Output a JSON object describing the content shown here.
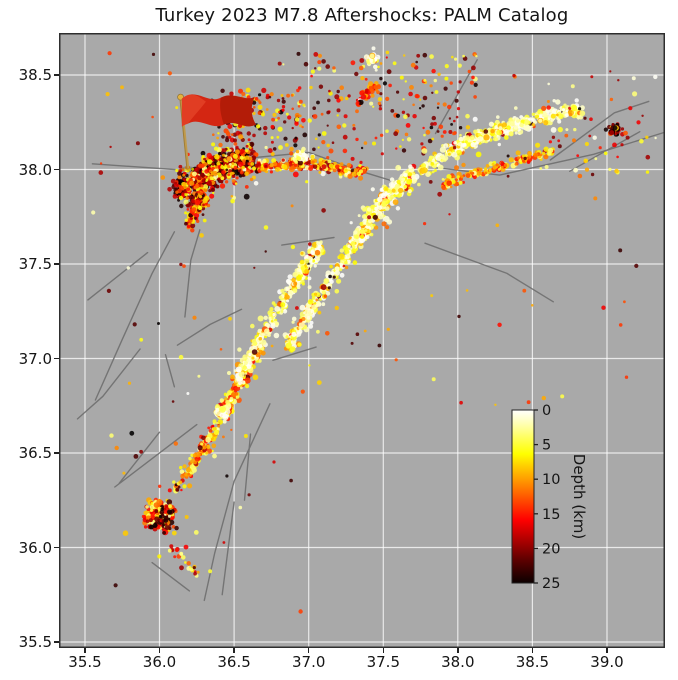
{
  "title": "Turkey 2023 M7.8 Aftershocks: PALM Catalog",
  "colors": {
    "figure_bg": "#ffffff",
    "axes_bg": "#a9a9a9",
    "grid": "rgba(255,255,255,0.75)",
    "fault_line": "#6f6f6f",
    "spine": "#2e2e2e",
    "text": "#151515",
    "flag_red": "#d42612",
    "flag_red_dark": "#a81a06",
    "flag_pole": "#c09a4c"
  },
  "chart_data": {
    "type": "scatter",
    "title": "Turkey 2023 M7.8 Aftershocks: PALM Catalog",
    "xlabel": "",
    "ylabel": "",
    "x_range": [
      35.326,
      39.389
    ],
    "y_range": [
      35.468,
      38.722
    ],
    "xticks": [
      35.5,
      36.0,
      36.5,
      37.0,
      37.5,
      38.0,
      38.5,
      39.0
    ],
    "yticks": [
      35.5,
      36.0,
      36.5,
      37.0,
      37.5,
      38.0,
      38.5
    ],
    "grid": true,
    "marker": "circle",
    "colorbar": {
      "label": "Depth (km)",
      "ticks": [
        0,
        5,
        10,
        15,
        20,
        25
      ],
      "min": 0,
      "max": 25,
      "cmap": "hot_r",
      "orientation": "vertical",
      "position": "inset lower right"
    },
    "epicenter_flag": {
      "lon": 36.19,
      "lat": 38.01
    },
    "clusters": [
      {
        "name": "m75-west-deep",
        "kind": "band",
        "pts": [
          [
            36.12,
            37.88
          ],
          [
            36.38,
            38.0
          ],
          [
            36.62,
            38.05
          ]
        ],
        "width": 0.09,
        "count": 550,
        "depth": [
          10,
          25
        ],
        "bias": "deep",
        "size": [
          1.3,
          3.0
        ]
      },
      {
        "name": "m75-west-mix",
        "kind": "band",
        "pts": [
          [
            36.12,
            37.88
          ],
          [
            36.38,
            38.0
          ],
          [
            36.62,
            38.05
          ]
        ],
        "width": 0.14,
        "count": 240,
        "depth": [
          2,
          20
        ],
        "bias": "uniform",
        "size": [
          1.3,
          2.8
        ]
      },
      {
        "name": "m75-southwest-tail",
        "kind": "band",
        "pts": [
          [
            36.18,
            37.7
          ],
          [
            36.3,
            37.87
          ]
        ],
        "width": 0.05,
        "count": 110,
        "depth": [
          5,
          23
        ],
        "bias": "uniform",
        "size": [
          1.3,
          2.8
        ]
      },
      {
        "name": "north-scatter",
        "kind": "field",
        "rect": [
          36.35,
          38.08,
          36.95,
          38.42
        ],
        "count": 140,
        "depth": [
          4,
          25
        ],
        "bias": "uniform",
        "size": [
          1.2,
          2.6
        ]
      },
      {
        "name": "m75-middle",
        "kind": "band",
        "pts": [
          [
            36.65,
            38.02
          ],
          [
            37.0,
            38.03
          ],
          [
            37.38,
            37.98
          ]
        ],
        "width": 0.05,
        "count": 240,
        "depth": [
          2,
          20
        ],
        "bias": "uniform",
        "size": [
          1.3,
          2.9
        ]
      },
      {
        "name": "m75-middle-shallow",
        "kind": "blob",
        "center": [
          36.95,
          38.07
        ],
        "rx": 0.06,
        "ry": 0.04,
        "count": 55,
        "depth": [
          0,
          8
        ],
        "bias": "shallow",
        "size": [
          1.6,
          3.2
        ]
      },
      {
        "name": "north-field",
        "kind": "field",
        "rect": [
          36.9,
          38.08,
          38.15,
          38.62
        ],
        "count": 190,
        "depth": [
          3,
          25
        ],
        "bias": "uniform",
        "size": [
          1.1,
          2.5
        ]
      },
      {
        "name": "red-streak",
        "kind": "band",
        "pts": [
          [
            37.32,
            38.35
          ],
          [
            37.46,
            38.45
          ]
        ],
        "width": 0.035,
        "count": 45,
        "depth": [
          8,
          18
        ],
        "bias": "uniform",
        "size": [
          1.4,
          2.8
        ]
      },
      {
        "name": "yellow-top-cluster",
        "kind": "blob",
        "center": [
          37.43,
          38.58
        ],
        "rx": 0.045,
        "ry": 0.035,
        "count": 40,
        "depth": [
          0,
          6
        ],
        "bias": "shallow",
        "size": [
          1.5,
          3.0
        ]
      },
      {
        "name": "amanos-segment",
        "kind": "band",
        "pts": [
          [
            36.42,
            36.7
          ],
          [
            36.55,
            36.9
          ],
          [
            36.68,
            37.08
          ]
        ],
        "width": 0.05,
        "count": 260,
        "depth": [
          2,
          16
        ],
        "bias": "uniform",
        "size": [
          1.4,
          3.0
        ]
      },
      {
        "name": "amanos-bright-blob",
        "kind": "blob",
        "center": [
          36.42,
          36.72
        ],
        "rx": 0.05,
        "ry": 0.045,
        "count": 80,
        "depth": [
          0,
          6
        ],
        "bias": "shallow",
        "size": [
          1.7,
          3.4
        ]
      },
      {
        "name": "southwest-cluster",
        "kind": "blob",
        "center": [
          36.0,
          36.17
        ],
        "rx": 0.13,
        "ry": 0.1,
        "count": 270,
        "depth": [
          2,
          20
        ],
        "bias": "uniform",
        "size": [
          1.4,
          3.0
        ]
      },
      {
        "name": "southwest-deep",
        "kind": "blob",
        "center": [
          36.03,
          36.14
        ],
        "rx": 0.1,
        "ry": 0.08,
        "count": 45,
        "depth": [
          14,
          25
        ],
        "bias": "deep",
        "size": [
          1.3,
          2.6
        ]
      },
      {
        "name": "southwest-trail-up",
        "kind": "band",
        "pts": [
          [
            36.1,
            36.3
          ],
          [
            36.28,
            36.5
          ],
          [
            36.4,
            36.66
          ]
        ],
        "width": 0.05,
        "count": 130,
        "depth": [
          2,
          18
        ],
        "bias": "uniform",
        "size": [
          1.3,
          2.9
        ]
      },
      {
        "name": "southwest-trail-down",
        "kind": "band",
        "pts": [
          [
            36.08,
            36.02
          ],
          [
            36.28,
            35.85
          ]
        ],
        "width": 0.05,
        "count": 26,
        "depth": [
          2,
          20
        ],
        "bias": "uniform",
        "size": [
          1.2,
          2.6
        ]
      },
      {
        "name": "eaf-strand-west",
        "kind": "band",
        "pts": [
          [
            36.52,
            36.88
          ],
          [
            36.72,
            37.16
          ],
          [
            36.95,
            37.46
          ],
          [
            37.08,
            37.6
          ]
        ],
        "width": 0.045,
        "count": 420,
        "depth": [
          0,
          12
        ],
        "bias": "shallow",
        "size": [
          1.4,
          3.1
        ]
      },
      {
        "name": "eaf-strand-east",
        "kind": "band",
        "pts": [
          [
            36.85,
            37.05
          ],
          [
            37.05,
            37.3
          ],
          [
            37.3,
            37.6
          ],
          [
            37.42,
            37.72
          ]
        ],
        "width": 0.045,
        "count": 420,
        "depth": [
          0,
          14
        ],
        "bias": "shallow",
        "size": [
          1.4,
          3.1
        ]
      },
      {
        "name": "junction-bright",
        "kind": "band",
        "pts": [
          [
            37.4,
            37.74
          ],
          [
            37.55,
            37.88
          ],
          [
            37.72,
            37.98
          ]
        ],
        "width": 0.06,
        "count": 260,
        "depth": [
          0,
          12
        ],
        "bias": "shallow",
        "size": [
          1.5,
          3.2
        ]
      },
      {
        "name": "ne-segment-main",
        "kind": "band",
        "pts": [
          [
            37.75,
            38.0
          ],
          [
            38.1,
            38.16
          ],
          [
            38.45,
            38.25
          ],
          [
            38.82,
            38.32
          ]
        ],
        "width": 0.05,
        "count": 470,
        "depth": [
          0,
          12
        ],
        "bias": "shallow",
        "size": [
          1.4,
          3.1
        ]
      },
      {
        "name": "ne-segment-lower",
        "kind": "band",
        "pts": [
          [
            37.9,
            37.92
          ],
          [
            38.3,
            38.02
          ],
          [
            38.65,
            38.1
          ]
        ],
        "width": 0.04,
        "count": 170,
        "depth": [
          3,
          16
        ],
        "bias": "uniform",
        "size": [
          1.3,
          2.8
        ]
      },
      {
        "name": "east-dark-cluster",
        "kind": "blob",
        "center": [
          39.05,
          38.21
        ],
        "rx": 0.07,
        "ry": 0.05,
        "count": 45,
        "depth": [
          12,
          25
        ],
        "bias": "deep",
        "size": [
          1.3,
          2.7
        ]
      },
      {
        "name": "east-sparse",
        "kind": "field",
        "rect": [
          38.55,
          37.95,
          39.33,
          38.5
        ],
        "count": 45,
        "depth": [
          0,
          20
        ],
        "bias": "uniform",
        "size": [
          1.2,
          2.6
        ]
      },
      {
        "name": "background-sparse-north",
        "kind": "field",
        "rect": [
          35.55,
          36.75,
          39.25,
          38.65
        ],
        "count": 120,
        "depth": [
          0,
          25
        ],
        "bias": "uniform",
        "size": [
          1.1,
          2.4
        ]
      },
      {
        "name": "background-sparse-south",
        "kind": "field",
        "rect": [
          35.6,
          35.65,
          37.0,
          36.65
        ],
        "count": 22,
        "depth": [
          0,
          25
        ],
        "bias": "uniform",
        "size": [
          1.1,
          2.4
        ]
      }
    ],
    "fault_lines": [
      [
        [
          35.55,
          38.03
        ],
        [
          36.1,
          38.0
        ],
        [
          36.48,
          37.96
        ]
      ],
      [
        [
          36.6,
          38.06
        ],
        [
          37.0,
          38.09
        ],
        [
          37.35,
          37.99
        ],
        [
          37.6,
          37.93
        ]
      ],
      [
        [
          37.85,
          38.01
        ],
        [
          38.28,
          37.97
        ],
        [
          38.91,
          38.08
        ],
        [
          39.4,
          38.2
        ]
      ],
      [
        [
          38.13,
          38.58
        ],
        [
          37.85,
          38.19
        ]
      ],
      [
        [
          38.62,
          38.05
        ],
        [
          39.05,
          38.3
        ],
        [
          39.28,
          38.36
        ]
      ],
      [
        [
          38.75,
          37.99
        ],
        [
          39.22,
          38.2
        ]
      ],
      [
        [
          37.78,
          37.61
        ],
        [
          38.33,
          37.45
        ],
        [
          38.64,
          37.3
        ]
      ],
      [
        [
          36.82,
          37.6
        ],
        [
          37.17,
          37.64
        ]
      ],
      [
        [
          36.76,
          36.99
        ],
        [
          37.05,
          37.06
        ]
      ],
      [
        [
          35.92,
          37.56
        ],
        [
          35.52,
          37.31
        ]
      ],
      [
        [
          36.1,
          37.67
        ],
        [
          35.95,
          37.45
        ],
        [
          35.75,
          37.1
        ],
        [
          35.57,
          36.78
        ]
      ],
      [
        [
          36.27,
          37.68
        ],
        [
          36.21,
          37.52
        ],
        [
          36.17,
          37.22
        ]
      ],
      [
        [
          36.55,
          37.26
        ],
        [
          36.34,
          37.18
        ],
        [
          36.12,
          37.07
        ]
      ],
      [
        [
          35.87,
          37.05
        ],
        [
          35.62,
          36.8
        ],
        [
          35.45,
          36.68
        ]
      ],
      [
        [
          36.74,
          36.76
        ],
        [
          36.5,
          36.35
        ],
        [
          36.37,
          35.97
        ],
        [
          36.3,
          35.72
        ]
      ],
      [
        [
          36.5,
          36.24
        ],
        [
          36.42,
          35.75
        ]
      ],
      [
        [
          36.61,
          36.6
        ],
        [
          36.57,
          36.25
        ]
      ],
      [
        [
          35.7,
          36.32
        ],
        [
          36.25,
          36.65
        ]
      ],
      [
        [
          36.0,
          36.61
        ],
        [
          35.73,
          36.34
        ]
      ],
      [
        [
          35.95,
          35.92
        ],
        [
          36.2,
          35.77
        ]
      ],
      [
        [
          36.04,
          37.02
        ],
        [
          36.1,
          36.85
        ]
      ]
    ]
  }
}
